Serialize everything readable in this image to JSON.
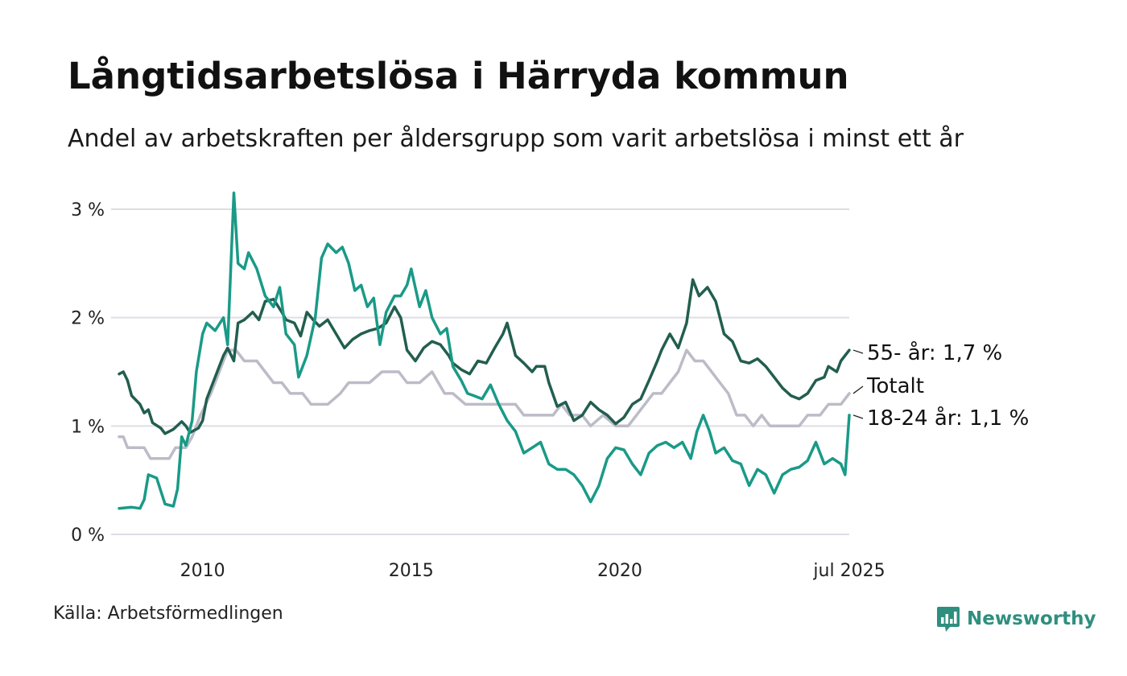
{
  "brand": {
    "name": "Newsworthy",
    "color": "#2f8f7f"
  },
  "chart_data": {
    "type": "line",
    "title": "Långtidsarbetslösa i Härryda kommun",
    "subtitle": "Andel av arbetskraften per åldersgrupp som varit arbetslösa i minst ett år",
    "source": "Källa: Arbetsförmedlingen",
    "xlabel": "",
    "ylabel": "",
    "ylim": [
      0,
      3.2
    ],
    "xlim": [
      2008.0,
      2025.5
    ],
    "yticks": [
      {
        "value": 0,
        "label": "0 %"
      },
      {
        "value": 1,
        "label": "1 %"
      },
      {
        "value": 2,
        "label": "2 %"
      },
      {
        "value": 3,
        "label": "3 %"
      }
    ],
    "xticks": [
      {
        "value": 2010,
        "label": "2010"
      },
      {
        "value": 2015,
        "label": "2015"
      },
      {
        "value": 2020,
        "label": "2020"
      },
      {
        "value": 2025.5,
        "label": "jul 2025"
      }
    ],
    "grid": true,
    "legend": "end-labels",
    "series": [
      {
        "name": "Totalt",
        "end_label": "Totalt",
        "color": "#bcbcc8",
        "points": [
          [
            2008.0,
            0.9
          ],
          [
            2008.1,
            0.9
          ],
          [
            2008.2,
            0.8
          ],
          [
            2008.5,
            0.8
          ],
          [
            2008.6,
            0.8
          ],
          [
            2008.75,
            0.7
          ],
          [
            2009.0,
            0.7
          ],
          [
            2009.2,
            0.7
          ],
          [
            2009.35,
            0.8
          ],
          [
            2009.6,
            0.8
          ],
          [
            2009.75,
            0.9
          ],
          [
            2009.95,
            1.1
          ],
          [
            2010.2,
            1.3
          ],
          [
            2010.4,
            1.5
          ],
          [
            2010.6,
            1.7
          ],
          [
            2010.8,
            1.7
          ],
          [
            2011.0,
            1.6
          ],
          [
            2011.3,
            1.6
          ],
          [
            2011.5,
            1.5
          ],
          [
            2011.7,
            1.4
          ],
          [
            2011.9,
            1.4
          ],
          [
            2012.1,
            1.3
          ],
          [
            2012.4,
            1.3
          ],
          [
            2012.6,
            1.2
          ],
          [
            2013.0,
            1.2
          ],
          [
            2013.3,
            1.3
          ],
          [
            2013.5,
            1.4
          ],
          [
            2013.75,
            1.4
          ],
          [
            2014.0,
            1.4
          ],
          [
            2014.3,
            1.5
          ],
          [
            2014.7,
            1.5
          ],
          [
            2014.9,
            1.4
          ],
          [
            2015.2,
            1.4
          ],
          [
            2015.5,
            1.5
          ],
          [
            2015.8,
            1.3
          ],
          [
            2016.0,
            1.3
          ],
          [
            2016.3,
            1.2
          ],
          [
            2016.8,
            1.2
          ],
          [
            2017.2,
            1.2
          ],
          [
            2017.5,
            1.2
          ],
          [
            2017.7,
            1.1
          ],
          [
            2018.0,
            1.1
          ],
          [
            2018.4,
            1.1
          ],
          [
            2018.6,
            1.2
          ],
          [
            2018.8,
            1.1
          ],
          [
            2019.1,
            1.1
          ],
          [
            2019.3,
            1.0
          ],
          [
            2019.6,
            1.1
          ],
          [
            2019.9,
            1.0
          ],
          [
            2020.2,
            1.0
          ],
          [
            2020.4,
            1.1
          ],
          [
            2020.6,
            1.2
          ],
          [
            2020.8,
            1.3
          ],
          [
            2021.0,
            1.3
          ],
          [
            2021.2,
            1.4
          ],
          [
            2021.4,
            1.5
          ],
          [
            2021.6,
            1.7
          ],
          [
            2021.8,
            1.6
          ],
          [
            2022.0,
            1.6
          ],
          [
            2022.2,
            1.5
          ],
          [
            2022.4,
            1.4
          ],
          [
            2022.6,
            1.3
          ],
          [
            2022.8,
            1.1
          ],
          [
            2023.0,
            1.1
          ],
          [
            2023.2,
            1.0
          ],
          [
            2023.4,
            1.1
          ],
          [
            2023.6,
            1.0
          ],
          [
            2023.8,
            1.0
          ],
          [
            2024.0,
            1.0
          ],
          [
            2024.3,
            1.0
          ],
          [
            2024.5,
            1.1
          ],
          [
            2024.8,
            1.1
          ],
          [
            2025.0,
            1.2
          ],
          [
            2025.3,
            1.2
          ],
          [
            2025.5,
            1.3
          ]
        ]
      },
      {
        "name": "55- år",
        "end_label": "55- år: 1,7 %",
        "color": "#225e4f",
        "points": [
          [
            2008.0,
            1.48
          ],
          [
            2008.1,
            1.5
          ],
          [
            2008.2,
            1.42
          ],
          [
            2008.3,
            1.28
          ],
          [
            2008.5,
            1.2
          ],
          [
            2008.6,
            1.12
          ],
          [
            2008.7,
            1.15
          ],
          [
            2008.8,
            1.03
          ],
          [
            2009.0,
            0.98
          ],
          [
            2009.1,
            0.93
          ],
          [
            2009.3,
            0.97
          ],
          [
            2009.5,
            1.04
          ],
          [
            2009.6,
            1.0
          ],
          [
            2009.7,
            0.94
          ],
          [
            2009.9,
            0.98
          ],
          [
            2010.0,
            1.05
          ],
          [
            2010.1,
            1.25
          ],
          [
            2010.3,
            1.45
          ],
          [
            2010.5,
            1.65
          ],
          [
            2010.6,
            1.72
          ],
          [
            2010.75,
            1.6
          ],
          [
            2010.85,
            1.95
          ],
          [
            2011.0,
            1.98
          ],
          [
            2011.2,
            2.05
          ],
          [
            2011.35,
            1.98
          ],
          [
            2011.5,
            2.15
          ],
          [
            2011.7,
            2.17
          ],
          [
            2011.9,
            2.05
          ],
          [
            2012.0,
            1.98
          ],
          [
            2012.2,
            1.95
          ],
          [
            2012.35,
            1.83
          ],
          [
            2012.5,
            2.05
          ],
          [
            2012.65,
            1.98
          ],
          [
            2012.8,
            1.92
          ],
          [
            2013.0,
            1.98
          ],
          [
            2013.2,
            1.85
          ],
          [
            2013.4,
            1.72
          ],
          [
            2013.6,
            1.8
          ],
          [
            2013.8,
            1.85
          ],
          [
            2014.0,
            1.88
          ],
          [
            2014.2,
            1.9
          ],
          [
            2014.4,
            1.95
          ],
          [
            2014.6,
            2.1
          ],
          [
            2014.75,
            2.0
          ],
          [
            2014.9,
            1.7
          ],
          [
            2015.1,
            1.6
          ],
          [
            2015.3,
            1.72
          ],
          [
            2015.5,
            1.78
          ],
          [
            2015.7,
            1.75
          ],
          [
            2015.9,
            1.65
          ],
          [
            2016.0,
            1.58
          ],
          [
            2016.2,
            1.52
          ],
          [
            2016.4,
            1.48
          ],
          [
            2016.6,
            1.6
          ],
          [
            2016.8,
            1.58
          ],
          [
            2017.0,
            1.72
          ],
          [
            2017.2,
            1.85
          ],
          [
            2017.3,
            1.95
          ],
          [
            2017.5,
            1.65
          ],
          [
            2017.7,
            1.58
          ],
          [
            2017.9,
            1.5
          ],
          [
            2018.0,
            1.55
          ],
          [
            2018.2,
            1.55
          ],
          [
            2018.3,
            1.4
          ],
          [
            2018.5,
            1.18
          ],
          [
            2018.7,
            1.22
          ],
          [
            2018.9,
            1.05
          ],
          [
            2019.1,
            1.1
          ],
          [
            2019.3,
            1.22
          ],
          [
            2019.5,
            1.15
          ],
          [
            2019.7,
            1.1
          ],
          [
            2019.9,
            1.02
          ],
          [
            2020.1,
            1.08
          ],
          [
            2020.3,
            1.2
          ],
          [
            2020.5,
            1.25
          ],
          [
            2020.7,
            1.42
          ],
          [
            2020.9,
            1.6
          ],
          [
            2021.0,
            1.7
          ],
          [
            2021.2,
            1.85
          ],
          [
            2021.4,
            1.72
          ],
          [
            2021.6,
            1.95
          ],
          [
            2021.75,
            2.35
          ],
          [
            2021.9,
            2.2
          ],
          [
            2022.1,
            2.28
          ],
          [
            2022.3,
            2.15
          ],
          [
            2022.5,
            1.85
          ],
          [
            2022.7,
            1.78
          ],
          [
            2022.9,
            1.6
          ],
          [
            2023.1,
            1.58
          ],
          [
            2023.3,
            1.62
          ],
          [
            2023.5,
            1.55
          ],
          [
            2023.7,
            1.45
          ],
          [
            2023.9,
            1.35
          ],
          [
            2024.1,
            1.28
          ],
          [
            2024.3,
            1.25
          ],
          [
            2024.5,
            1.3
          ],
          [
            2024.7,
            1.42
          ],
          [
            2024.9,
            1.45
          ],
          [
            2025.0,
            1.55
          ],
          [
            2025.2,
            1.5
          ],
          [
            2025.3,
            1.6
          ],
          [
            2025.5,
            1.7
          ]
        ]
      },
      {
        "name": "18-24 år",
        "end_label": "18-24 år: 1,1 %",
        "color": "#1a9a87",
        "points": [
          [
            2008.0,
            0.24
          ],
          [
            2008.3,
            0.25
          ],
          [
            2008.5,
            0.24
          ],
          [
            2008.6,
            0.32
          ],
          [
            2008.7,
            0.55
          ],
          [
            2008.9,
            0.52
          ],
          [
            2009.1,
            0.28
          ],
          [
            2009.3,
            0.26
          ],
          [
            2009.4,
            0.42
          ],
          [
            2009.5,
            0.9
          ],
          [
            2009.6,
            0.82
          ],
          [
            2009.75,
            1.05
          ],
          [
            2009.85,
            1.5
          ],
          [
            2010.0,
            1.85
          ],
          [
            2010.1,
            1.95
          ],
          [
            2010.3,
            1.88
          ],
          [
            2010.5,
            2.0
          ],
          [
            2010.6,
            1.75
          ],
          [
            2010.75,
            3.15
          ],
          [
            2010.85,
            2.5
          ],
          [
            2011.0,
            2.45
          ],
          [
            2011.1,
            2.6
          ],
          [
            2011.3,
            2.45
          ],
          [
            2011.5,
            2.2
          ],
          [
            2011.7,
            2.1
          ],
          [
            2011.85,
            2.28
          ],
          [
            2012.0,
            1.85
          ],
          [
            2012.2,
            1.75
          ],
          [
            2012.3,
            1.45
          ],
          [
            2012.5,
            1.65
          ],
          [
            2012.7,
            2.0
          ],
          [
            2012.85,
            2.55
          ],
          [
            2013.0,
            2.68
          ],
          [
            2013.2,
            2.6
          ],
          [
            2013.35,
            2.65
          ],
          [
            2013.5,
            2.5
          ],
          [
            2013.65,
            2.25
          ],
          [
            2013.8,
            2.3
          ],
          [
            2013.95,
            2.1
          ],
          [
            2014.1,
            2.18
          ],
          [
            2014.25,
            1.75
          ],
          [
            2014.4,
            2.05
          ],
          [
            2014.6,
            2.2
          ],
          [
            2014.75,
            2.2
          ],
          [
            2014.9,
            2.3
          ],
          [
            2015.0,
            2.45
          ],
          [
            2015.2,
            2.1
          ],
          [
            2015.35,
            2.25
          ],
          [
            2015.5,
            2.0
          ],
          [
            2015.7,
            1.85
          ],
          [
            2015.85,
            1.9
          ],
          [
            2016.0,
            1.55
          ],
          [
            2016.2,
            1.42
          ],
          [
            2016.35,
            1.3
          ],
          [
            2016.5,
            1.28
          ],
          [
            2016.7,
            1.25
          ],
          [
            2016.9,
            1.38
          ],
          [
            2017.1,
            1.2
          ],
          [
            2017.3,
            1.05
          ],
          [
            2017.5,
            0.95
          ],
          [
            2017.7,
            0.75
          ],
          [
            2017.9,
            0.8
          ],
          [
            2018.1,
            0.85
          ],
          [
            2018.3,
            0.65
          ],
          [
            2018.5,
            0.6
          ],
          [
            2018.7,
            0.6
          ],
          [
            2018.9,
            0.55
          ],
          [
            2019.1,
            0.45
          ],
          [
            2019.3,
            0.3
          ],
          [
            2019.5,
            0.45
          ],
          [
            2019.7,
            0.7
          ],
          [
            2019.9,
            0.8
          ],
          [
            2020.1,
            0.78
          ],
          [
            2020.3,
            0.65
          ],
          [
            2020.5,
            0.55
          ],
          [
            2020.7,
            0.75
          ],
          [
            2020.9,
            0.82
          ],
          [
            2021.1,
            0.85
          ],
          [
            2021.3,
            0.8
          ],
          [
            2021.5,
            0.85
          ],
          [
            2021.7,
            0.7
          ],
          [
            2021.85,
            0.95
          ],
          [
            2022.0,
            1.1
          ],
          [
            2022.15,
            0.95
          ],
          [
            2022.3,
            0.75
          ],
          [
            2022.5,
            0.8
          ],
          [
            2022.7,
            0.68
          ],
          [
            2022.9,
            0.65
          ],
          [
            2023.1,
            0.45
          ],
          [
            2023.3,
            0.6
          ],
          [
            2023.5,
            0.55
          ],
          [
            2023.7,
            0.38
          ],
          [
            2023.9,
            0.55
          ],
          [
            2024.1,
            0.6
          ],
          [
            2024.3,
            0.62
          ],
          [
            2024.5,
            0.68
          ],
          [
            2024.7,
            0.85
          ],
          [
            2024.9,
            0.65
          ],
          [
            2025.1,
            0.7
          ],
          [
            2025.3,
            0.65
          ],
          [
            2025.4,
            0.55
          ],
          [
            2025.5,
            1.1
          ]
        ]
      }
    ]
  }
}
